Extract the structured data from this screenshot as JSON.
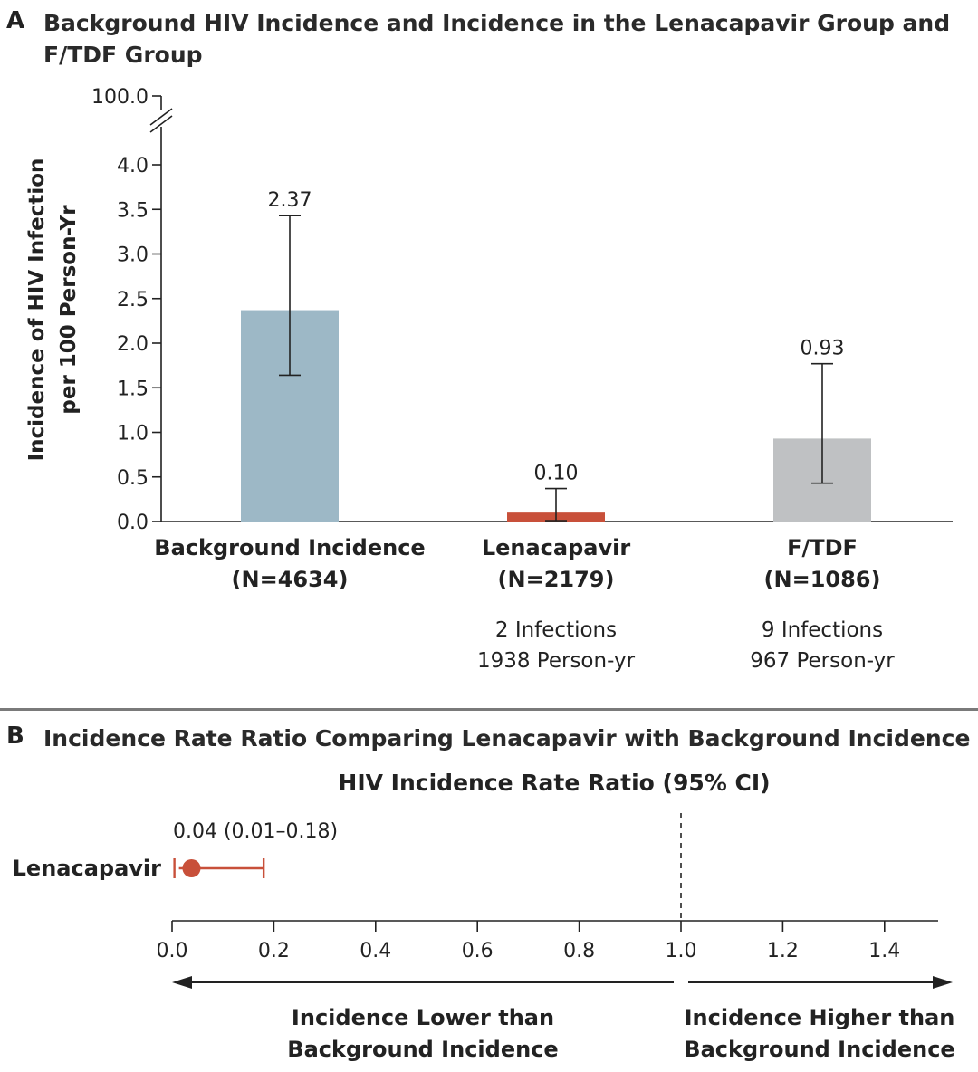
{
  "panel_a": {
    "letter": "A",
    "title_line1": "Background HIV Incidence and Incidence in the Lenacapavir Group and",
    "title_line2": "F/TDF Group"
  },
  "panel_b": {
    "letter": "B",
    "title": "Incidence Rate Ratio Comparing Lenacapavir with Background Incidence"
  },
  "chart_data": [
    {
      "type": "bar",
      "title": "Background HIV Incidence and Incidence in the Lenacapavir Group and F/TDF Group",
      "ylabel_line1": "Incidence of HIV Infection",
      "ylabel_line2": "per 100 Person-Yr",
      "ylim": [
        0,
        4.0
      ],
      "axis_break_value": "100.0",
      "yticks": [
        "0.0",
        "0.5",
        "1.0",
        "1.5",
        "2.0",
        "2.5",
        "3.0",
        "3.5",
        "4.0"
      ],
      "categories": [
        {
          "name": "Background Incidence",
          "n": "(N=4634)",
          "value": 2.37,
          "label": "2.37",
          "ci": [
            1.64,
            3.43
          ],
          "color": "#9db8c6",
          "note1": "",
          "note2": ""
        },
        {
          "name": "Lenacapavir",
          "n": "(N=2179)",
          "value": 0.1,
          "label": "0.10",
          "ci": [
            0.01,
            0.37
          ],
          "color": "#c8503a",
          "note1": "2 Infections",
          "note2": "1938 Person-yr"
        },
        {
          "name": "F/TDF",
          "n": "(N=1086)",
          "value": 0.93,
          "label": "0.93",
          "ci": [
            0.43,
            1.77
          ],
          "color": "#bfc1c3",
          "note1": "9 Infections",
          "note2": "967 Person-yr"
        }
      ]
    },
    {
      "type": "scatter",
      "title": "HIV Incidence Rate Ratio (95% CI)",
      "xlim": [
        0,
        1.5
      ],
      "xticks": [
        "0.0",
        "0.2",
        "0.4",
        "0.6",
        "0.8",
        "1.0",
        "1.2",
        "1.4"
      ],
      "reference_line": 1.0,
      "row_label": "Lenacapavir",
      "estimate": 0.04,
      "ci": [
        0.01,
        0.18
      ],
      "estimate_label": "0.04 (0.01–0.18)",
      "color": "#c8503a",
      "lower_arrow_line1": "Incidence Lower than",
      "lower_arrow_line2": "Background Incidence",
      "higher_arrow_line1": "Incidence Higher than",
      "higher_arrow_line2": "Background Incidence"
    }
  ]
}
